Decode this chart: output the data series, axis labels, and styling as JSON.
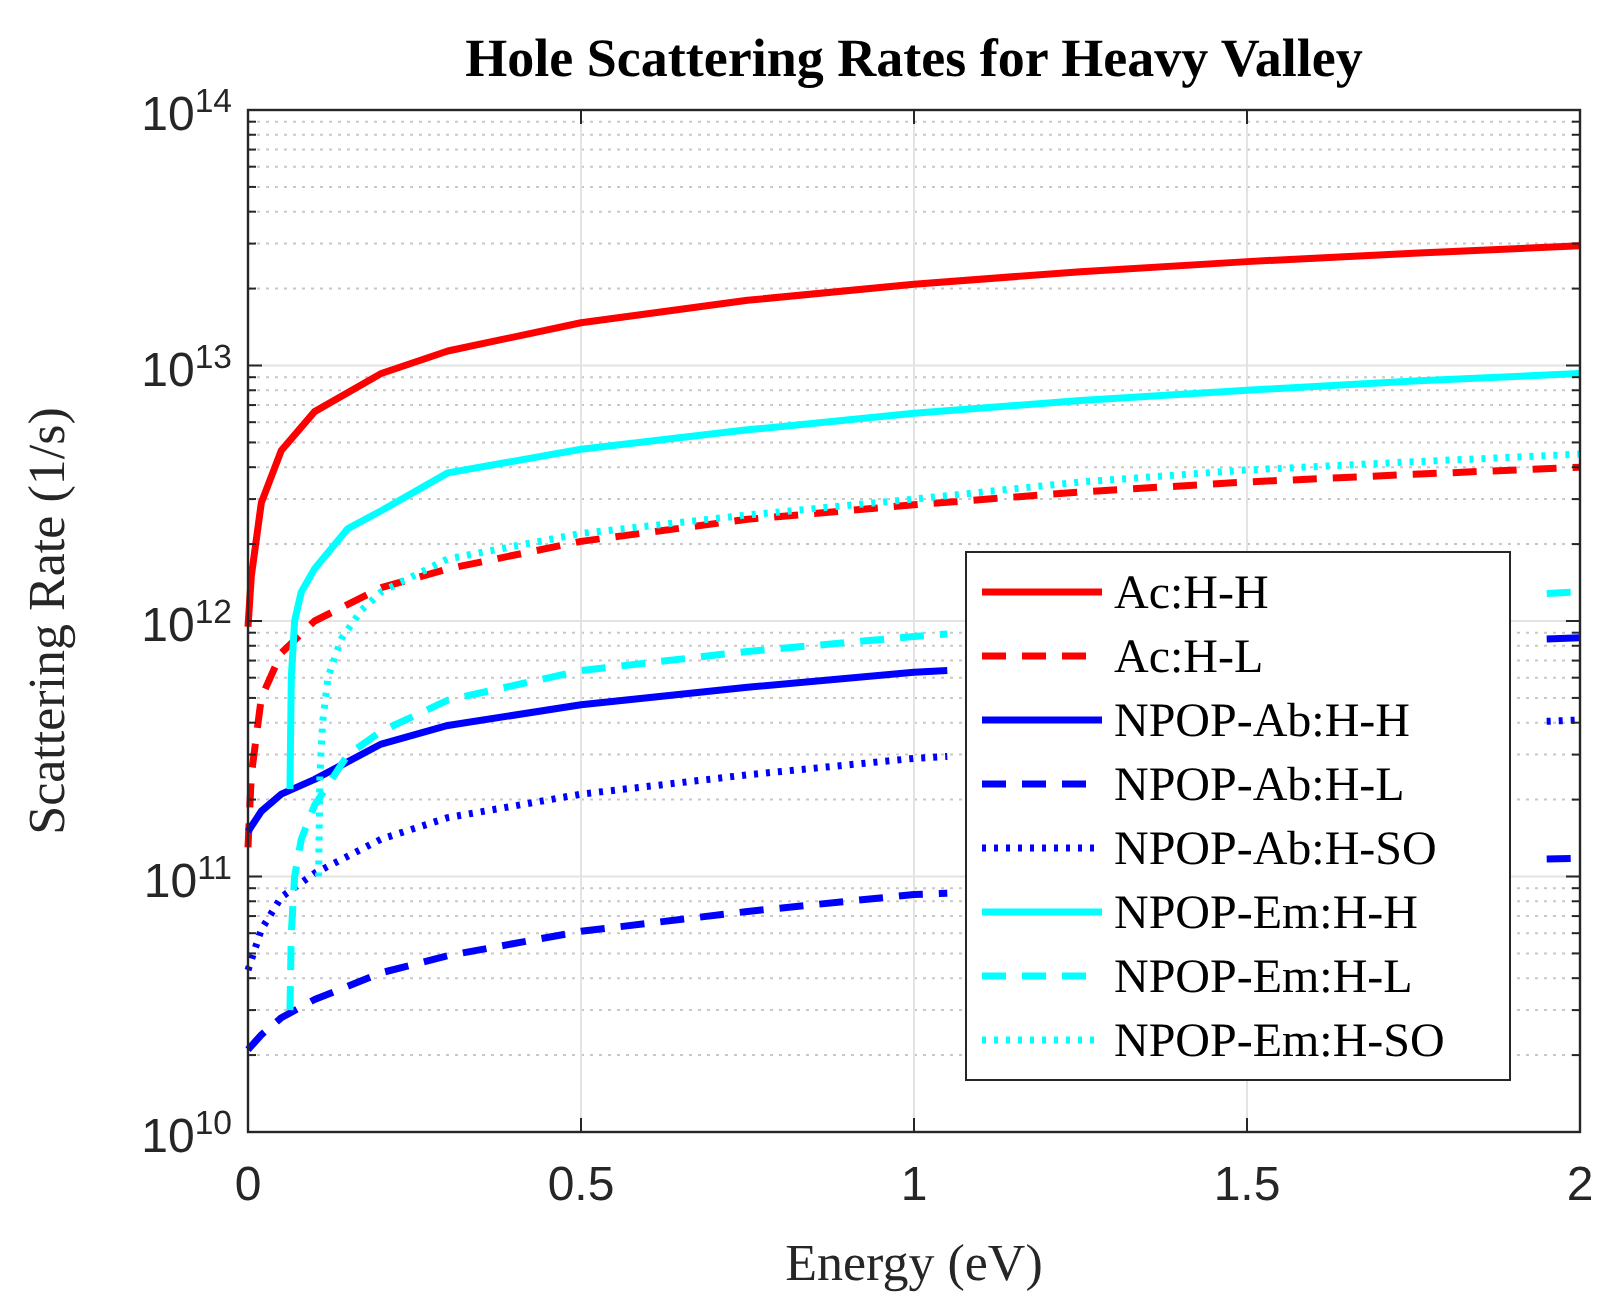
{
  "chart_data": {
    "type": "line",
    "title": "Hole Scattering Rates for Heavy Valley",
    "xlabel": "Energy (eV)",
    "ylabel": "Scattering Rate (1/s)",
    "log": "y",
    "grid": true,
    "legend": "right",
    "xlim": [
      0,
      2
    ],
    "xticks": [
      0,
      0.5,
      1,
      1.5,
      2
    ],
    "ylim": [
      10000000000.0,
      100000000000000.0
    ],
    "yticks": [
      {
        "value": 10000000000.0,
        "label": "10$^{10}$"
      },
      {
        "value": 100000000000.0,
        "label": "10$^{11}$"
      },
      {
        "value": 1000000000000.0,
        "label": "10$^{12}$"
      },
      {
        "value": 10000000000000.0,
        "label": "10$^{13}$"
      },
      {
        "value": 100000000000000.0,
        "label": "10$^{14}$"
      }
    ],
    "series": [
      {
        "name": "Ac:H-H",
        "color": "#ff0000",
        "line_style": "solid",
        "x": [
          0,
          0.005,
          0.02,
          0.05,
          0.1,
          0.2,
          0.3,
          0.5,
          0.75,
          1,
          1.25,
          1.5,
          1.75,
          2
        ],
        "values": [
          950000000000.0,
          1500000000000.0,
          2900000000000.0,
          4650000000000.0,
          6600000000000.0,
          9300000000000.0,
          11400000000000.0,
          14700000000000.0,
          18000000000000.0,
          20800000000000.0,
          23300000000000.0,
          25500000000000.0,
          27500000000000.0,
          29400000000000.0
        ]
      },
      {
        "name": "Ac:H-L",
        "color": "#ff0000",
        "line_style": "dashed",
        "x": [
          0,
          0.005,
          0.02,
          0.05,
          0.1,
          0.2,
          0.3,
          0.5,
          0.75,
          1,
          1.25,
          1.5,
          1.75,
          2
        ],
        "values": [
          130000000000.0,
          250000000000.0,
          500000000000.0,
          750000000000.0,
          1000000000000.0,
          1350000000000.0,
          1600000000000.0,
          2050000000000.0,
          2500000000000.0,
          2850000000000.0,
          3200000000000.0,
          3500000000000.0,
          3750000000000.0,
          4000000000000.0
        ]
      },
      {
        "name": "NPOP-Ab:H-H",
        "color": "#0000ff",
        "line_style": "solid",
        "x": [
          0,
          0.02,
          0.05,
          0.1,
          0.2,
          0.3,
          0.5,
          0.75,
          1,
          1.05,
          1.25,
          1.5,
          1.75,
          1.95,
          2
        ],
        "values": [
          150000000000.0,
          180000000000.0,
          210000000000.0,
          240000000000.0,
          330000000000.0,
          390000000000.0,
          470000000000.0,
          550000000000.0,
          630000000000.0,
          640000000000.0,
          null,
          null,
          null,
          850000000000.0,
          860000000000.0
        ]
      },
      {
        "name": "NPOP-Ab:H-L",
        "color": "#0000ff",
        "line_style": "dashed",
        "x": [
          0,
          0.02,
          0.05,
          0.1,
          0.2,
          0.3,
          0.5,
          0.75,
          1,
          1.05,
          1.25,
          1.5,
          1.75,
          1.95,
          2
        ],
        "values": [
          21000000000.0,
          24000000000.0,
          28000000000.0,
          33000000000.0,
          42000000000.0,
          49000000000.0,
          61000000000.0,
          73000000000.0,
          85000000000.0,
          86000000000.0,
          null,
          null,
          null,
          117000000000.0,
          118000000000.0
        ]
      },
      {
        "name": "NPOP-Ab:H-SO",
        "color": "#0000ff",
        "line_style": "dotted",
        "x": [
          0,
          0.02,
          0.05,
          0.1,
          0.2,
          0.3,
          0.5,
          0.75,
          1,
          1.05,
          1.25,
          1.5,
          1.75,
          1.95,
          2
        ],
        "values": [
          43000000000.0,
          62000000000.0,
          83000000000.0,
          103000000000.0,
          140000000000.0,
          170000000000.0,
          210000000000.0,
          250000000000.0,
          290000000000.0,
          295000000000.0,
          null,
          null,
          null,
          405000000000.0,
          410000000000.0
        ]
      },
      {
        "name": "NPOP-Em:H-H",
        "color": "#00ffff",
        "line_style": "solid",
        "x": [
          0.063,
          0.065,
          0.07,
          0.08,
          0.1,
          0.15,
          0.2,
          0.3,
          0.5,
          0.75,
          1,
          1.25,
          1.5,
          1.75,
          2
        ],
        "values": [
          220000000000.0,
          600000000000.0,
          1000000000000.0,
          1300000000000.0,
          1600000000000.0,
          2300000000000.0,
          2700000000000.0,
          3800000000000.0,
          4700000000000.0,
          5600000000000.0,
          6500000000000.0,
          7300000000000.0,
          8000000000000.0,
          8700000000000.0,
          9300000000000.0
        ]
      },
      {
        "name": "NPOP-Em:H-L",
        "color": "#00ffff",
        "line_style": "dashed",
        "x": [
          0.063,
          0.065,
          0.07,
          0.08,
          0.1,
          0.15,
          0.2,
          0.3,
          0.5,
          0.75,
          1,
          1.05,
          1.25,
          1.5,
          1.75,
          1.95,
          2
        ],
        "values": [
          30000000000.0,
          60000000000.0,
          100000000000.0,
          140000000000.0,
          190000000000.0,
          300000000000.0,
          370000000000.0,
          490000000000.0,
          640000000000.0,
          760000000000.0,
          870000000000.0,
          890000000000.0,
          null,
          null,
          null,
          1280000000000.0,
          1300000000000.0
        ]
      },
      {
        "name": "NPOP-Em:H-SO",
        "color": "#00ffff",
        "line_style": "dotted",
        "x": [
          0.106,
          0.108,
          0.112,
          0.12,
          0.14,
          0.17,
          0.2,
          0.3,
          0.5,
          0.75,
          1,
          1.25,
          1.5,
          1.75,
          2
        ],
        "values": [
          100000000000.0,
          250000000000.0,
          400000000000.0,
          600000000000.0,
          850000000000.0,
          1100000000000.0,
          1300000000000.0,
          1750000000000.0,
          2200000000000.0,
          2600000000000.0,
          3000000000000.0,
          3500000000000.0,
          3900000000000.0,
          4200000000000.0,
          4500000000000.0
        ]
      }
    ]
  }
}
